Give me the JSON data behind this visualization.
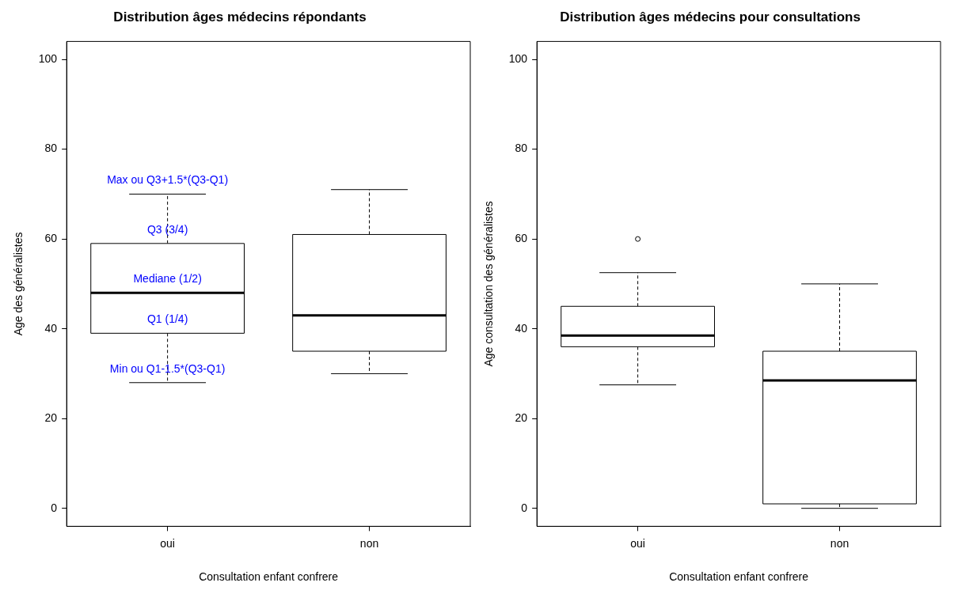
{
  "chart_data": [
    {
      "type": "box",
      "title": "Distribution âges médecins répondants",
      "xlabel": "Consultation enfant confrere",
      "ylabel": "Age des généralistes",
      "categories": [
        "oui",
        "non"
      ],
      "boxes": [
        {
          "low": 28,
          "q1": 39,
          "median": 48,
          "q3": 59,
          "high": 70
        },
        {
          "low": 30,
          "q1": 35,
          "median": 43,
          "q3": 61,
          "high": 71
        }
      ],
      "ylim": [
        -4,
        104
      ],
      "yticks": [
        0,
        20,
        40,
        60,
        80,
        100
      ],
      "grid": false,
      "annotations": [
        {
          "text": "Max ou Q3+1.5*(Q3-Q1)",
          "x": "oui",
          "y": 70
        },
        {
          "text": "Q3 (3/4)",
          "x": "oui",
          "y": 59
        },
        {
          "text": "Mediane (1/2)",
          "x": "oui",
          "y": 48
        },
        {
          "text": "Q1 (1/4)",
          "x": "oui",
          "y": 39
        },
        {
          "text": "Min ou Q1-1.5*(Q3-Q1)",
          "x": "oui",
          "y": 28
        }
      ]
    },
    {
      "type": "box",
      "title": "Distribution âges médecins pour consultations",
      "xlabel": "Consultation enfant confrere",
      "ylabel": "Age consultation des généralistes",
      "categories": [
        "oui",
        "non"
      ],
      "boxes": [
        {
          "low": 27.5,
          "q1": 36,
          "median": 38.5,
          "q3": 45,
          "high": 52.5,
          "outliers": [
            60
          ]
        },
        {
          "low": 0,
          "q1": 1,
          "median": 28.5,
          "q3": 35,
          "high": 50
        }
      ],
      "ylim": [
        -4,
        104
      ],
      "yticks": [
        0,
        20,
        40,
        60,
        80,
        100
      ],
      "grid": false
    }
  ]
}
